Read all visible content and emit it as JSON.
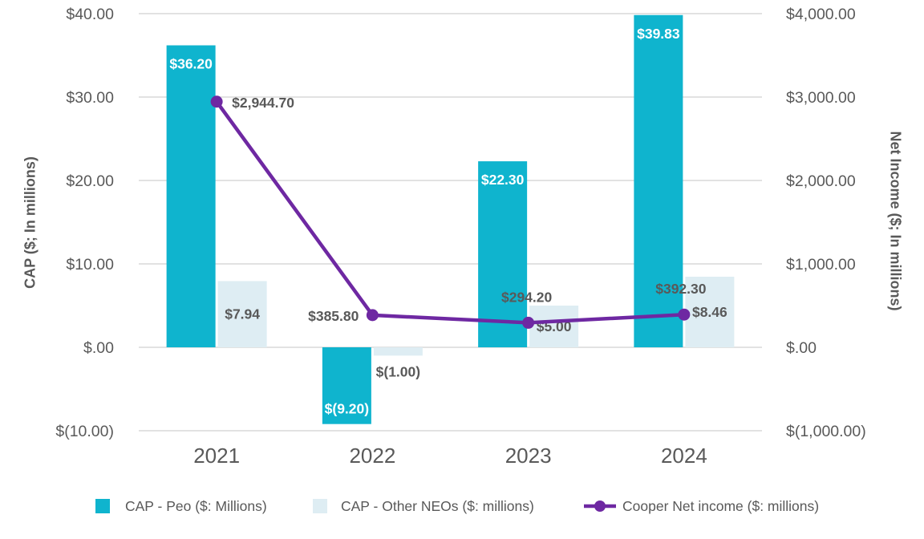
{
  "chart_data": {
    "type": "combo-bar-line",
    "categories": [
      "2021",
      "2022",
      "2023",
      "2024"
    ],
    "series": [
      {
        "name": "CAP - Peo ($: Millions)",
        "chart_type": "bar",
        "axis": "left",
        "color": "#0fb4ce",
        "label_color": "#ffffff",
        "values": [
          36.2,
          -9.2,
          22.3,
          39.83
        ],
        "data_labels": [
          "$36.20",
          "$(9.20)",
          "$22.30",
          "$39.83"
        ]
      },
      {
        "name": "CAP - Other NEOs ($: millions)",
        "chart_type": "bar",
        "axis": "left",
        "color": "#deedf3",
        "label_color": "#595959",
        "values": [
          7.94,
          -1.0,
          5.0,
          8.46
        ],
        "data_labels": [
          "$7.94",
          "$(1.00)",
          "$5.00",
          "$8.46"
        ]
      },
      {
        "name": "Cooper Net income ($: millions)",
        "chart_type": "line",
        "axis": "right",
        "color": "#6e28a2",
        "label_color": "#595959",
        "values": [
          2944.7,
          385.8,
          294.2,
          392.3
        ],
        "data_labels": [
          "$2,944.70",
          "$385.80",
          "$294.20",
          "$392.30"
        ]
      }
    ],
    "left_axis": {
      "title": "CAP ($; In millions)",
      "min": -10,
      "max": 40,
      "tick_values": [
        40,
        30,
        20,
        10,
        0,
        -10
      ],
      "tick_labels": [
        "$40.00",
        "$30.00",
        "$20.00",
        "$10.00",
        "$.00",
        "$(10.00)"
      ]
    },
    "right_axis": {
      "title": "Net Income ($; In millions)",
      "min": -1000,
      "max": 4000,
      "tick_values": [
        4000,
        3000,
        2000,
        1000,
        0,
        -1000
      ],
      "tick_labels": [
        "$4,000.00",
        "$3,000.00",
        "$2,000.00",
        "$1,000.00",
        "$.00",
        "$(1,000.00)"
      ]
    },
    "grid": true,
    "legend_position": "bottom",
    "styles": {
      "grid_color": "#e2e2e2",
      "tick_color": "#595959",
      "category_label_color": "#595959",
      "background": "#ffffff"
    }
  }
}
